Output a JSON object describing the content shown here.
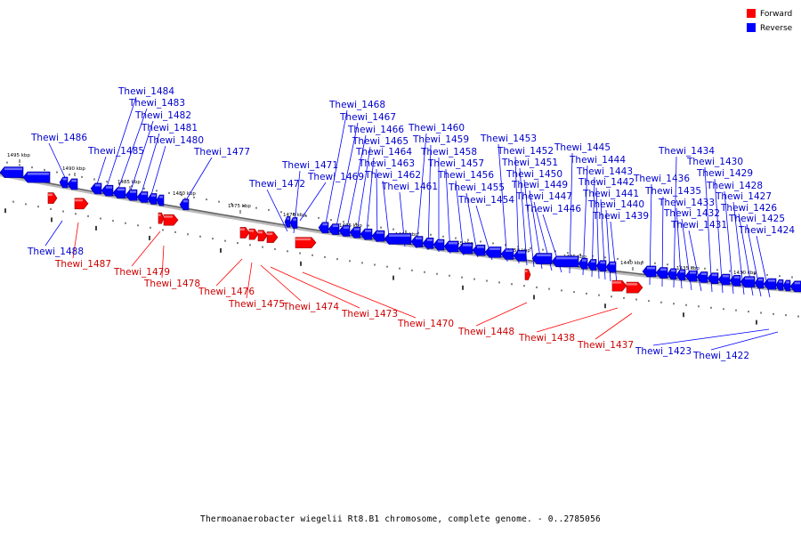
{
  "legend": [
    {
      "label": "Forward",
      "color": "#ff0000"
    },
    {
      "label": "Reverse",
      "color": "#0000ff"
    }
  ],
  "caption": "Thermoanaerobacter wiegelii Rt8.B1 chromosome, complete genome. - 0..2785056",
  "colors": {
    "forward": "#ff0000",
    "reverse": "#0000ff",
    "backbone": "#777777",
    "forward_label": "#cc0000",
    "reverse_label": "#0000cc"
  },
  "axis_labels": [
    "1495 kbp",
    "1490 kbp",
    "1485 kbp",
    "1480 kbp",
    "1475 kbp",
    "1470 kbp",
    "1465 kbp",
    "1460 kbp",
    "1455 kbp",
    "1450 kbp",
    "1445 kbp",
    "1440 kbp",
    "1435 kbp",
    "1430 kbp"
  ],
  "genes_reverse": [
    "Thewi_1486",
    "Thewi_1485",
    "Thewi_1484",
    "Thewi_1483",
    "Thewi_1482",
    "Thewi_1481",
    "Thewi_1480",
    "Thewi_1477",
    "Thewi_1472",
    "Thewi_1471",
    "Thewi_1469",
    "Thewi_1468",
    "Thewi_1467",
    "Thewi_1466",
    "Thewi_1465",
    "Thewi_1464",
    "Thewi_1463",
    "Thewi_1462",
    "Thewi_1461",
    "Thewi_1460",
    "Thewi_1459",
    "Thewi_1458",
    "Thewi_1457",
    "Thewi_1456",
    "Thewi_1455",
    "Thewi_1454",
    "Thewi_1453",
    "Thewi_1452",
    "Thewi_1451",
    "Thewi_1450",
    "Thewi_1449",
    "Thewi_1447",
    "Thewi_1446",
    "Thewi_1445",
    "Thewi_1444",
    "Thewi_1443",
    "Thewi_1442",
    "Thewi_1441",
    "Thewi_1440",
    "Thewi_1439",
    "Thewi_1436",
    "Thewi_1435",
    "Thewi_1434",
    "Thewi_1433",
    "Thewi_1432",
    "Thewi_1431",
    "Thewi_1430",
    "Thewi_1429",
    "Thewi_1428",
    "Thewi_1427",
    "Thewi_1426",
    "Thewi_1425",
    "Thewi_1424",
    "Thewi_1488",
    "Thewi_1423",
    "Thewi_1422"
  ],
  "genes_forward": [
    "Thewi_1487",
    "Thewi_1479",
    "Thewi_1478",
    "Thewi_1476",
    "Thewi_1475",
    "Thewi_1474",
    "Thewi_1473",
    "Thewi_1470",
    "Thewi_1448",
    "Thewi_1438",
    "Thewi_1437"
  ]
}
